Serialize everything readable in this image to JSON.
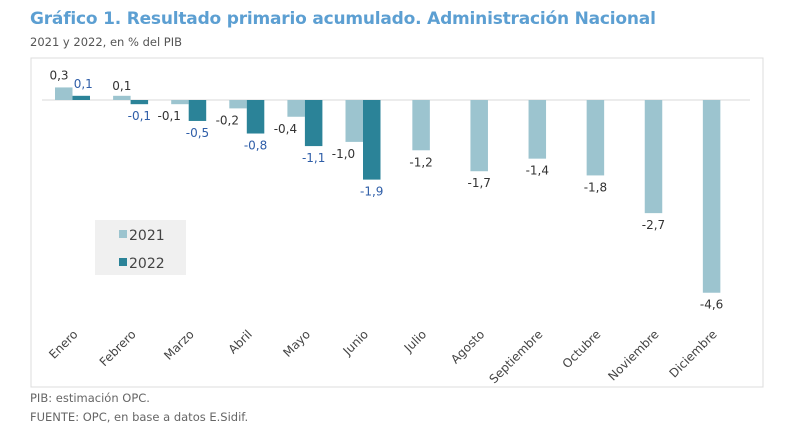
{
  "title": "Gráfico 1. Resultado primario acumulado. Administración Nacional",
  "subtitle": "2021 y 2022, en % del PIB",
  "notes": [
    "PIB: estimación OPC.",
    "FUENTE: OPC, en base a datos E.Sidif."
  ],
  "chart_data": {
    "type": "bar",
    "title": "Gráfico 1. Resultado primario acumulado. Administración Nacional",
    "ylabel": "",
    "xlabel": "",
    "ylim": [
      -4.6,
      0.3
    ],
    "grid": false,
    "legend_position": "left",
    "categories": [
      "Enero",
      "Febrero",
      "Marzo",
      "Abril",
      "Mayo",
      "Junio",
      "Julio",
      "Agosto",
      "Septiembre",
      "Octubre",
      "Noviembre",
      "Diciembre"
    ],
    "series": [
      {
        "name": "2021",
        "color": "#9cc4cf",
        "label_color": "#333333",
        "values": [
          0.3,
          0.1,
          -0.1,
          -0.2,
          -0.4,
          -1.0,
          -1.2,
          -1.7,
          -1.4,
          -1.8,
          -2.7,
          -4.6
        ],
        "labels": [
          "0,3",
          "0,1",
          "-0,1",
          "-0,2",
          "-0,4",
          "-1,0",
          "-1,2",
          "-1,7",
          "-1,4",
          "-1,8",
          "-2,7",
          "-4,6"
        ]
      },
      {
        "name": "2022",
        "color": "#2b8398",
        "label_color": "#2f5ea8",
        "values": [
          0.1,
          -0.1,
          -0.5,
          -0.8,
          -1.1,
          -1.9,
          null,
          null,
          null,
          null,
          null,
          null
        ],
        "labels": [
          "0,1",
          "-0,1",
          "-0,5",
          "-0,8",
          "-1,1",
          "-1,9",
          null,
          null,
          null,
          null,
          null,
          null
        ]
      }
    ]
  }
}
